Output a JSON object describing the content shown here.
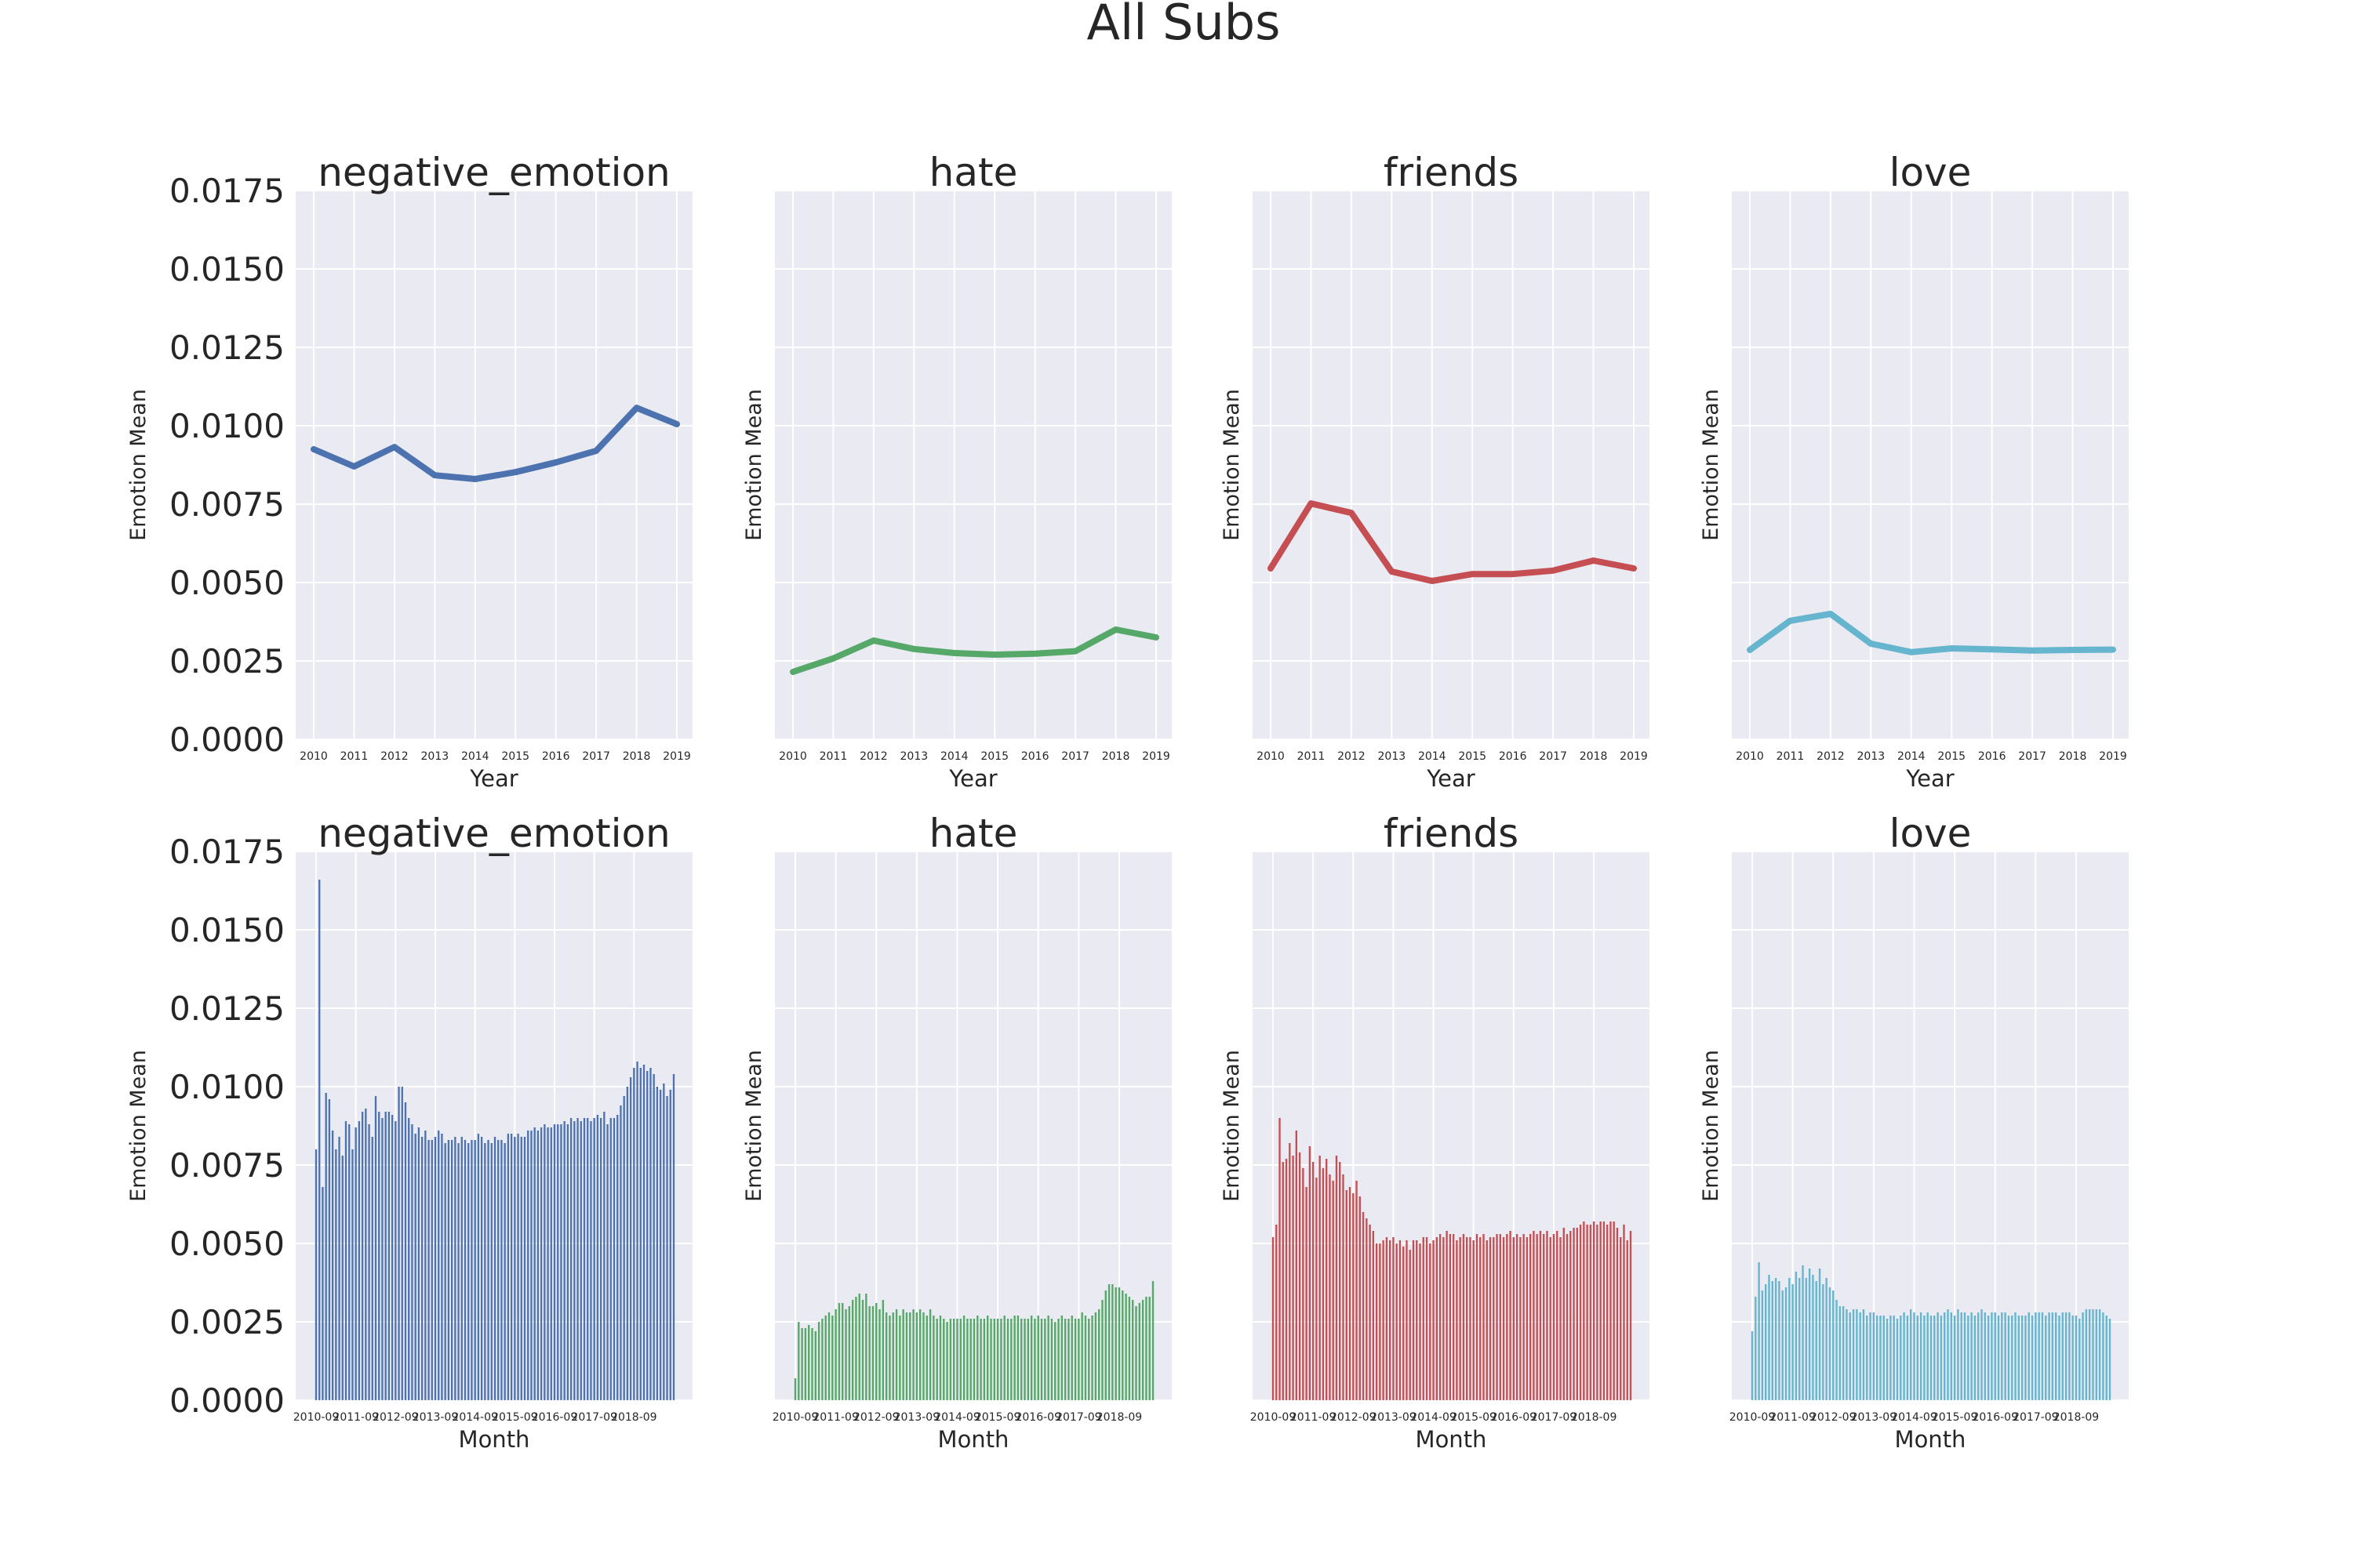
{
  "figure": {
    "title": "All Subs"
  },
  "colors": {
    "background": "#ffffff",
    "axes_face": "#eaeaf2",
    "grid": "#ffffff",
    "text": "#262626"
  },
  "yticks": [
    "0.0000",
    "0.0025",
    "0.0050",
    "0.0075",
    "0.0100",
    "0.0125",
    "0.0150",
    "0.0175"
  ],
  "chart_data": [
    {
      "type": "line",
      "title": "negative_emotion",
      "xlabel": "Year",
      "ylabel": "Emotion Mean",
      "color": "#4c72b0",
      "ylim": [
        0,
        0.0175
      ],
      "x": [
        "2010",
        "2011",
        "2012",
        "2013",
        "2014",
        "2015",
        "2016",
        "2017",
        "2018",
        "2019"
      ],
      "values": [
        0.00925,
        0.0087,
        0.00932,
        0.00842,
        0.0083,
        0.00852,
        0.00883,
        0.0092,
        0.01057,
        0.01005
      ]
    },
    {
      "type": "line",
      "title": "hate",
      "xlabel": "Year",
      "ylabel": "Emotion Mean",
      "color": "#55a868",
      "ylim": [
        0,
        0.0175
      ],
      "x": [
        "2010",
        "2011",
        "2012",
        "2013",
        "2014",
        "2015",
        "2016",
        "2017",
        "2018",
        "2019"
      ],
      "values": [
        0.00215,
        0.00258,
        0.00315,
        0.00288,
        0.00275,
        0.0027,
        0.00273,
        0.00281,
        0.0035,
        0.00325
      ]
    },
    {
      "type": "line",
      "title": "friends",
      "xlabel": "Year",
      "ylabel": "Emotion Mean",
      "color": "#c44e52",
      "ylim": [
        0,
        0.0175
      ],
      "x": [
        "2010",
        "2011",
        "2012",
        "2013",
        "2014",
        "2015",
        "2016",
        "2017",
        "2018",
        "2019"
      ],
      "values": [
        0.00545,
        0.00752,
        0.00722,
        0.00535,
        0.00505,
        0.00527,
        0.00527,
        0.00538,
        0.0057,
        0.00545
      ]
    },
    {
      "type": "line",
      "title": "love",
      "xlabel": "Year",
      "ylabel": "Emotion Mean",
      "color": "#64b5cd",
      "ylim": [
        0,
        0.0175
      ],
      "x": [
        "2010",
        "2011",
        "2012",
        "2013",
        "2014",
        "2015",
        "2016",
        "2017",
        "2018",
        "2019"
      ],
      "values": [
        0.00285,
        0.00378,
        0.004,
        0.00305,
        0.00278,
        0.0029,
        0.00287,
        0.00283,
        0.00285,
        0.00286
      ]
    },
    {
      "type": "bar",
      "title": "negative_emotion",
      "xlabel": "Month",
      "ylabel": "Emotion Mean",
      "color": "#4c72b0",
      "ylim": [
        0,
        0.0175
      ],
      "xticklabels": [
        "2010-09",
        "2011-09",
        "2012-09",
        "2013-09",
        "2014-09",
        "2015-09",
        "2016-09",
        "2017-09",
        "2018-09"
      ],
      "values": [
        0.008,
        0.0166,
        0.0068,
        0.0098,
        0.0096,
        0.0086,
        0.008,
        0.0084,
        0.0078,
        0.0089,
        0.0088,
        0.008,
        0.0087,
        0.0089,
        0.0092,
        0.0093,
        0.0088,
        0.0084,
        0.0097,
        0.0092,
        0.009,
        0.0092,
        0.0092,
        0.0091,
        0.0089,
        0.01,
        0.01,
        0.0095,
        0.009,
        0.0088,
        0.0085,
        0.0087,
        0.0084,
        0.0086,
        0.0083,
        0.0083,
        0.0084,
        0.0086,
        0.0085,
        0.0082,
        0.0083,
        0.0083,
        0.0084,
        0.0082,
        0.0084,
        0.0083,
        0.0082,
        0.0083,
        0.0083,
        0.0085,
        0.0084,
        0.0082,
        0.0083,
        0.0082,
        0.0084,
        0.0083,
        0.0083,
        0.0082,
        0.0085,
        0.0085,
        0.0084,
        0.0085,
        0.0084,
        0.0084,
        0.0086,
        0.0086,
        0.0087,
        0.0086,
        0.0087,
        0.0088,
        0.0087,
        0.0087,
        0.0088,
        0.0088,
        0.0088,
        0.0089,
        0.0088,
        0.009,
        0.0089,
        0.009,
        0.0089,
        0.009,
        0.009,
        0.0089,
        0.009,
        0.0091,
        0.009,
        0.0092,
        0.0088,
        0.009,
        0.009,
        0.0091,
        0.0094,
        0.0097,
        0.01,
        0.0103,
        0.0106,
        0.0108,
        0.0106,
        0.0107,
        0.0105,
        0.0106,
        0.0104,
        0.01,
        0.0099,
        0.0101,
        0.0097,
        0.0099,
        0.0104
      ]
    },
    {
      "type": "bar",
      "title": "hate",
      "xlabel": "Month",
      "ylabel": "Emotion Mean",
      "color": "#55a868",
      "ylim": [
        0,
        0.0175
      ],
      "xticklabels": [
        "2010-09",
        "2011-09",
        "2012-09",
        "2013-09",
        "2014-09",
        "2015-09",
        "2016-09",
        "2017-09",
        "2018-09"
      ],
      "values": [
        0.0007,
        0.0025,
        0.0023,
        0.0023,
        0.0024,
        0.0023,
        0.0022,
        0.0025,
        0.0026,
        0.0027,
        0.0028,
        0.0027,
        0.0029,
        0.0031,
        0.0031,
        0.0029,
        0.003,
        0.0032,
        0.0033,
        0.0034,
        0.0032,
        0.0034,
        0.003,
        0.003,
        0.0031,
        0.0029,
        0.0032,
        0.0028,
        0.0027,
        0.0028,
        0.0029,
        0.0027,
        0.0029,
        0.0028,
        0.0028,
        0.0029,
        0.0028,
        0.0029,
        0.0028,
        0.0027,
        0.0029,
        0.0027,
        0.0026,
        0.0027,
        0.0026,
        0.0025,
        0.0026,
        0.0026,
        0.0026,
        0.0026,
        0.0027,
        0.0026,
        0.0026,
        0.0026,
        0.0027,
        0.0026,
        0.0026,
        0.0027,
        0.0026,
        0.0026,
        0.0026,
        0.0026,
        0.0027,
        0.0026,
        0.0026,
        0.0027,
        0.0027,
        0.0026,
        0.0026,
        0.0026,
        0.0027,
        0.0026,
        0.0027,
        0.0026,
        0.0026,
        0.0027,
        0.0026,
        0.0025,
        0.0026,
        0.0027,
        0.0026,
        0.0026,
        0.0027,
        0.0026,
        0.0026,
        0.0028,
        0.0027,
        0.0026,
        0.0027,
        0.0028,
        0.0029,
        0.0032,
        0.0035,
        0.0037,
        0.0037,
        0.0036,
        0.0036,
        0.0035,
        0.0034,
        0.0033,
        0.0032,
        0.003,
        0.0031,
        0.0032,
        0.0033,
        0.0033,
        0.0038
      ]
    },
    {
      "type": "bar",
      "title": "friends",
      "xlabel": "Month",
      "ylabel": "Emotion Mean",
      "color": "#c44e52",
      "ylim": [
        0,
        0.0175
      ],
      "xticklabels": [
        "2010-09",
        "2011-09",
        "2012-09",
        "2013-09",
        "2014-09",
        "2015-09",
        "2016-09",
        "2017-09",
        "2018-09"
      ],
      "values": [
        0.0052,
        0.0056,
        0.009,
        0.0076,
        0.0077,
        0.0082,
        0.0078,
        0.0086,
        0.0079,
        0.0074,
        0.0068,
        0.0081,
        0.0076,
        0.0071,
        0.0078,
        0.0074,
        0.0077,
        0.0072,
        0.007,
        0.0078,
        0.0076,
        0.0072,
        0.0067,
        0.0068,
        0.0066,
        0.007,
        0.0065,
        0.006,
        0.0058,
        0.0056,
        0.0054,
        0.005,
        0.005,
        0.0051,
        0.0052,
        0.0051,
        0.0052,
        0.005,
        0.0051,
        0.0049,
        0.0051,
        0.0048,
        0.0051,
        0.0051,
        0.005,
        0.0052,
        0.0052,
        0.005,
        0.0051,
        0.0052,
        0.0053,
        0.0052,
        0.0054,
        0.0053,
        0.0053,
        0.0051,
        0.0052,
        0.0053,
        0.0052,
        0.0052,
        0.0051,
        0.0053,
        0.0052,
        0.0053,
        0.0051,
        0.0052,
        0.0052,
        0.0053,
        0.0053,
        0.0052,
        0.0053,
        0.0054,
        0.0052,
        0.0053,
        0.0052,
        0.0053,
        0.0052,
        0.0053,
        0.0054,
        0.0053,
        0.0054,
        0.0053,
        0.0054,
        0.0052,
        0.0053,
        0.0054,
        0.0052,
        0.0055,
        0.0053,
        0.0054,
        0.0055,
        0.0055,
        0.0056,
        0.0057,
        0.0056,
        0.0056,
        0.0057,
        0.0056,
        0.0057,
        0.0057,
        0.0056,
        0.0057,
        0.0057,
        0.0055,
        0.0052,
        0.0056,
        0.0051,
        0.0054
      ]
    },
    {
      "type": "bar",
      "title": "love",
      "xlabel": "Month",
      "ylabel": "Emotion Mean",
      "color": "#64b5cd",
      "ylim": [
        0,
        0.0175
      ],
      "xticklabels": [
        "2010-09",
        "2011-09",
        "2012-09",
        "2013-09",
        "2014-09",
        "2015-09",
        "2016-09",
        "2017-09",
        "2018-09"
      ],
      "values": [
        0.0022,
        0.0033,
        0.0044,
        0.0035,
        0.0037,
        0.004,
        0.0038,
        0.0039,
        0.0038,
        0.0035,
        0.0036,
        0.0039,
        0.0037,
        0.0041,
        0.0039,
        0.0043,
        0.0039,
        0.0042,
        0.004,
        0.0038,
        0.0042,
        0.0037,
        0.0039,
        0.0036,
        0.0035,
        0.0032,
        0.003,
        0.003,
        0.0029,
        0.0028,
        0.0029,
        0.0029,
        0.0028,
        0.0029,
        0.0027,
        0.0028,
        0.0028,
        0.0027,
        0.0027,
        0.0027,
        0.0026,
        0.0027,
        0.0027,
        0.0026,
        0.0027,
        0.0028,
        0.0027,
        0.0029,
        0.0028,
        0.0027,
        0.0028,
        0.0027,
        0.0028,
        0.0027,
        0.0027,
        0.0028,
        0.0027,
        0.0028,
        0.0029,
        0.0028,
        0.0027,
        0.0029,
        0.0028,
        0.0028,
        0.0027,
        0.0028,
        0.0027,
        0.0028,
        0.0029,
        0.0028,
        0.0027,
        0.0028,
        0.0028,
        0.0027,
        0.0028,
        0.0028,
        0.0027,
        0.0027,
        0.0028,
        0.0027,
        0.0027,
        0.0027,
        0.0028,
        0.0027,
        0.0028,
        0.0028,
        0.0028,
        0.0027,
        0.0028,
        0.0028,
        0.0028,
        0.0027,
        0.0028,
        0.0028,
        0.0028,
        0.0027,
        0.0027,
        0.0026,
        0.0028,
        0.0029,
        0.0029,
        0.0029,
        0.0029,
        0.0029,
        0.0028,
        0.0027,
        0.0026
      ]
    }
  ]
}
